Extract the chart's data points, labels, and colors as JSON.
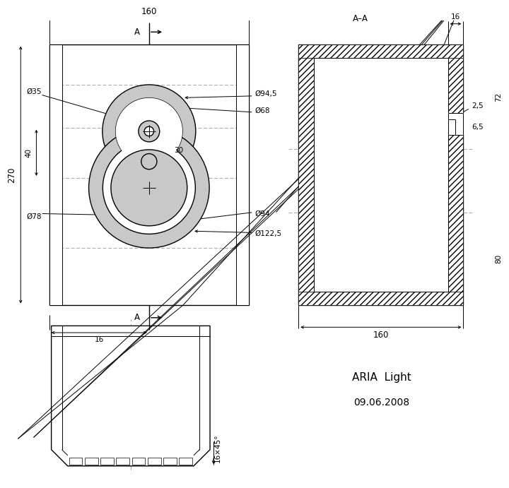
{
  "line_color": "#000000",
  "dim_color": "#000000",
  "gray_fill": "#c8c8c8",
  "white": "#ffffff",
  "dash_color": "#999999",
  "labels": {
    "title": "ARIA  Light",
    "date": "09.06.2008",
    "d160_top": "160",
    "d270": "270",
    "d35": "Ø35",
    "d40": "40",
    "d94_5": "Ø94,5",
    "d68": "Ø68",
    "d30": "30",
    "d78": "Ø78",
    "d94": "Ø94",
    "d122_5": "Ø122,5",
    "d16_bot": "16",
    "sec_label": "A–A",
    "d16_sec": "16",
    "d72": "72",
    "d2_5": "2,5",
    "d6_5": "6,5",
    "d80": "80",
    "d160_sec": "160",
    "d16x45": "16×45°"
  }
}
